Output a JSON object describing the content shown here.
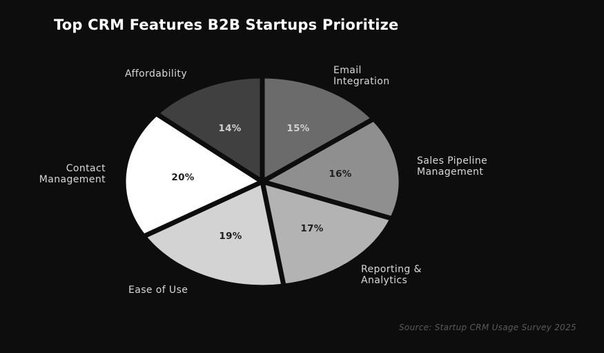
{
  "chart_data": {
    "type": "pie",
    "title": "Top CRM Features B2B Startups Prioritize",
    "start_angle": "12 o'clock, clockwise",
    "slices": [
      {
        "label": "Email Integration",
        "value": 15,
        "display": "15%",
        "color": "#6b6b6b",
        "text_color": "#d0d0d0"
      },
      {
        "label": "Sales Pipeline Management",
        "value": 16,
        "display": "16%",
        "color": "#8f8f8f",
        "text_color": "#1e1e1e"
      },
      {
        "label": "Reporting & Analytics",
        "value": 17,
        "display": "17%",
        "color": "#b3b3b3",
        "text_color": "#1e1e1e"
      },
      {
        "label": "Ease of Use",
        "value": 19,
        "display": "19%",
        "color": "#d3d3d3",
        "text_color": "#1e1e1e"
      },
      {
        "label": "Contact Management",
        "value": 20,
        "display": "20%",
        "color": "#ffffff",
        "text_color": "#1e1e1e"
      },
      {
        "label": "Affordability",
        "value": 14,
        "display": "14%",
        "color": "#404040",
        "text_color": "#cfcfcf"
      }
    ],
    "source": "Source: Startup CRM Usage Survey 2025"
  },
  "labels": {
    "email_1": "Email",
    "email_2": "Integration",
    "sales_1": "Sales Pipeline",
    "sales_2": "Management",
    "reporting_1": "Reporting &",
    "reporting_2": "Analytics",
    "ease": "Ease of Use",
    "contact_1": "Contact",
    "contact_2": "Management",
    "affordability": "Affordability"
  }
}
